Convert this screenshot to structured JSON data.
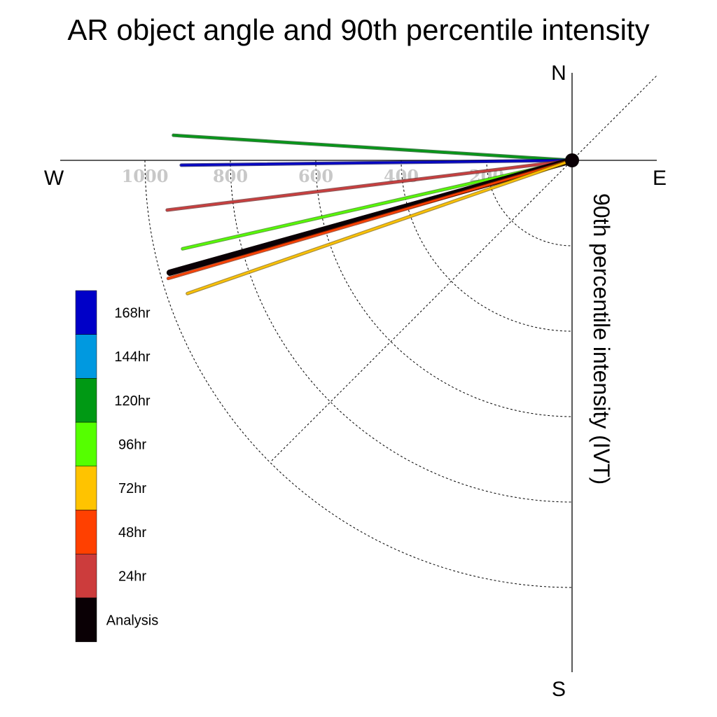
{
  "chart_data": {
    "type": "polar-line",
    "title": "AR object angle and 90th percentile intensity",
    "radial_label": "90th percentile intensity (IVT)",
    "compass": {
      "north": "N",
      "east": "E",
      "south": "S",
      "west": "W"
    },
    "radial_ticks": [
      200,
      400,
      600,
      800,
      1000
    ],
    "radial_tick_labels": [
      "200",
      "400",
      "600",
      "800",
      "1000"
    ],
    "angle_reference": "degrees counterclockwise from west toward north",
    "series": [
      {
        "name": "120hr",
        "color": "#009914",
        "angle_deg": 3.6,
        "value": 935
      },
      {
        "name": "168hr",
        "color": "#0000c8",
        "angle_deg": -0.7,
        "value": 915
      },
      {
        "name": "24hr",
        "color": "#cc3c3c",
        "angle_deg": -7.0,
        "value": 955
      },
      {
        "name": "96hr",
        "color": "#55ff00",
        "angle_deg": -12.8,
        "value": 935
      },
      {
        "name": "Analysis",
        "color": "#0a0005",
        "angle_deg": -15.6,
        "value": 978
      },
      {
        "name": "48hr",
        "color": "#ff4000",
        "angle_deg": -16.3,
        "value": 985
      },
      {
        "name": "72hr",
        "color": "#ffc300",
        "angle_deg": -19.1,
        "value": 953
      }
    ],
    "legend": [
      {
        "label": "168hr",
        "color": "#0000c8"
      },
      {
        "label": "144hr",
        "color": "#0099e0"
      },
      {
        "label": "120hr",
        "color": "#009914"
      },
      {
        "label": "96hr",
        "color": "#55ff00"
      },
      {
        "label": "72hr",
        "color": "#ffc300"
      },
      {
        "label": "48hr",
        "color": "#ff4000"
      },
      {
        "label": "24hr",
        "color": "#cc3c3c"
      },
      {
        "label": "Analysis",
        "color": "#0a0005"
      }
    ],
    "legend_placement": "bottom-left",
    "grid": true
  }
}
